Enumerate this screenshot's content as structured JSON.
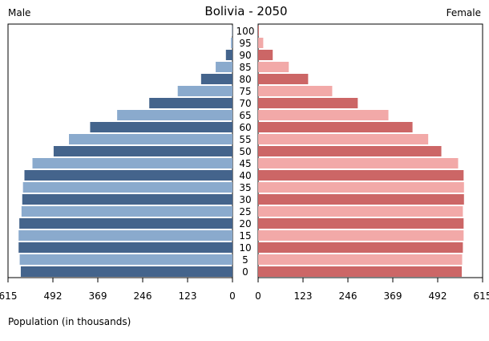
{
  "chart_data": {
    "type": "bar",
    "title": "Bolivia - 2050",
    "left_label": "Male",
    "right_label": "Female",
    "xlabel": "Population (in thousands)",
    "categories": [
      "0",
      "5",
      "10",
      "15",
      "20",
      "25",
      "30",
      "35",
      "40",
      "45",
      "50",
      "55",
      "60",
      "65",
      "70",
      "75",
      "80",
      "85",
      "90",
      "95",
      "100"
    ],
    "x_ticks": {
      "male": [
        "615",
        "492",
        "369",
        "246",
        "123",
        "0"
      ],
      "female": [
        "0",
        "123",
        "246",
        "369",
        "492",
        "615"
      ]
    },
    "xlim": [
      0,
      615
    ],
    "grid": false,
    "series": [
      {
        "name": "Male",
        "values": [
          580,
          583,
          586,
          586,
          584,
          578,
          576,
          574,
          570,
          548,
          490,
          448,
          390,
          316,
          228,
          150,
          86,
          46,
          18,
          4,
          1
        ]
      },
      {
        "name": "Female",
        "values": [
          558,
          559,
          561,
          563,
          563,
          561,
          564,
          564,
          563,
          548,
          502,
          466,
          423,
          357,
          273,
          203,
          137,
          84,
          40,
          14,
          2
        ]
      }
    ],
    "colors": {
      "male_dark": "#44648c",
      "male_light": "#8aaacd",
      "female_dark": "#cc6666",
      "female_light": "#f2a9a8",
      "axis": "#000000"
    }
  }
}
